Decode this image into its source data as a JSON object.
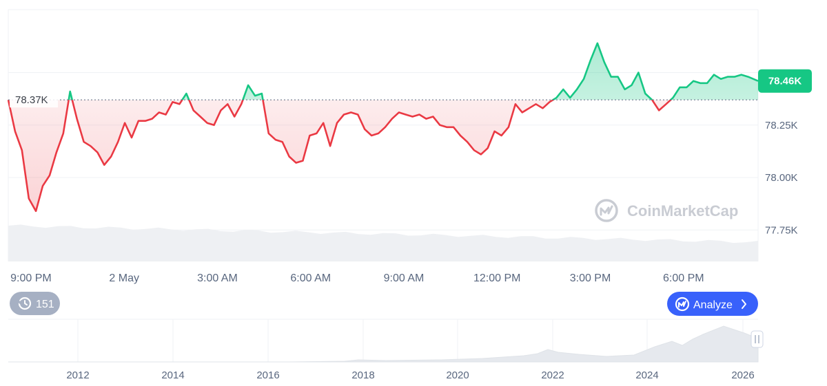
{
  "watermark": {
    "text": "CoinMarketCap"
  },
  "history_badge": {
    "count": "151",
    "icon": "history-icon"
  },
  "analyze_button": {
    "label": "Analyze",
    "icon": "coinmarketcap-logo-icon",
    "arrow": "chevron-right-icon"
  },
  "colors": {
    "up": "#16c784",
    "down": "#ea3943",
    "grid": "#eff2f5",
    "axis_text": "#58667e",
    "analyze_bg": "#3861fb",
    "history_bg": "#a6b0c3"
  },
  "chart_data": {
    "type": "line",
    "baseline_label": "78.37K",
    "baseline_value": 78370,
    "current_label": "78.46K",
    "current_value": 78460,
    "ylim": [
      77600,
      78800
    ],
    "y_ticks": [
      {
        "value": 78250,
        "label": "78.25K"
      },
      {
        "value": 78000,
        "label": "78.00K"
      },
      {
        "value": 77750,
        "label": "77.75K"
      }
    ],
    "y_grid": [
      78500,
      78250,
      78000,
      77750
    ],
    "x_ticks": [
      "9:00 PM",
      "2 May",
      "3:00 AM",
      "6:00 AM",
      "9:00 AM",
      "12:00 PM",
      "3:00 PM",
      "6:00 PM"
    ],
    "x_tick_hours": [
      0,
      3,
      6,
      9,
      12,
      15,
      18,
      21
    ],
    "x_range_hours": [
      -0.73,
      23.4
    ],
    "series": [
      {
        "x_hours": [
          -0.73,
          -0.51,
          -0.29,
          -0.07,
          0.16,
          0.38,
          0.6,
          0.82,
          1.04,
          1.26,
          1.48,
          1.7,
          1.92,
          2.14,
          2.36,
          2.58,
          2.8,
          3.02,
          3.24,
          3.46,
          3.68,
          3.9,
          4.12,
          4.34,
          4.56,
          4.78,
          5.0,
          5.23,
          5.45,
          5.67,
          5.89,
          6.11,
          6.33,
          6.55,
          6.77,
          6.99,
          7.21,
          7.43,
          7.65,
          7.87,
          8.09,
          8.31,
          8.53,
          8.75,
          8.97,
          9.19,
          9.41,
          9.63,
          9.85,
          10.07,
          10.3,
          10.52,
          10.74,
          10.96,
          11.18,
          11.4,
          11.62,
          11.84,
          12.06,
          12.28,
          12.5,
          12.72,
          12.94,
          13.16,
          13.38,
          13.6,
          13.82,
          14.04,
          14.26,
          14.48,
          14.7,
          14.92,
          15.14,
          15.37,
          15.59,
          15.81,
          16.03,
          16.25,
          16.47,
          16.69,
          16.91,
          17.13,
          17.35,
          17.57,
          17.79,
          18.01,
          18.23,
          18.45,
          18.67,
          18.89,
          19.11,
          19.33,
          19.55,
          19.77,
          19.99,
          20.21,
          20.44,
          20.66,
          20.88,
          21.1,
          21.32,
          21.54,
          21.76,
          21.98,
          22.2,
          22.42,
          22.64,
          22.86,
          23.08,
          23.4
        ],
        "values": [
          78370,
          78220,
          78130,
          77900,
          77840,
          77960,
          78010,
          78120,
          78210,
          78410,
          78280,
          78170,
          78150,
          78120,
          78060,
          78100,
          78170,
          78260,
          78190,
          78270,
          78270,
          78280,
          78310,
          78300,
          78360,
          78350,
          78400,
          78320,
          78290,
          78260,
          78250,
          78320,
          78350,
          78290,
          78350,
          78440,
          78390,
          78400,
          78210,
          78180,
          78170,
          78100,
          78070,
          78080,
          78200,
          78210,
          78260,
          78150,
          78260,
          78300,
          78310,
          78300,
          78230,
          78200,
          78210,
          78240,
          78280,
          78310,
          78300,
          78290,
          78300,
          78280,
          78290,
          78250,
          78240,
          78240,
          78200,
          78170,
          78130,
          78110,
          78140,
          78220,
          78200,
          78240,
          78350,
          78310,
          78330,
          78350,
          78330,
          78360,
          78380,
          78420,
          78380,
          78420,
          78470,
          78560,
          78640,
          78550,
          78480,
          78480,
          78420,
          78440,
          78500,
          78400,
          78370,
          78320,
          78350,
          78380,
          78430,
          78430,
          78460,
          78450,
          78450,
          78490,
          78470,
          78480,
          78480,
          78490,
          78480,
          78460
        ]
      }
    ],
    "volume_hint": "decreasing",
    "navigator": {
      "x_ticks": [
        "2012",
        "2014",
        "2016",
        "2018",
        "2020",
        "2022",
        "2024",
        "2026"
      ]
    }
  }
}
